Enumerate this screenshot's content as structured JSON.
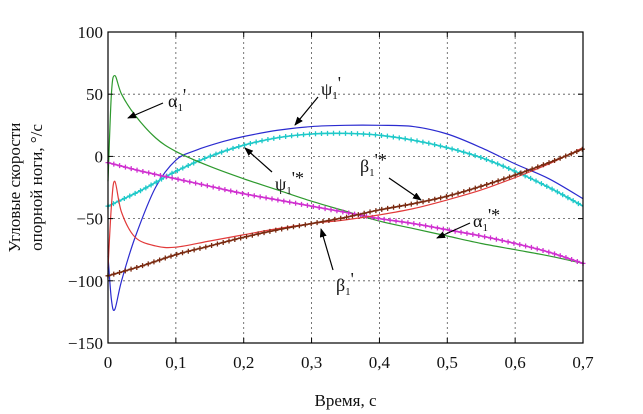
{
  "chart_data": {
    "type": "line",
    "xlabel": "Время, с",
    "ylabel": [
      "Угловые скорости",
      "опорной ноги, °/с"
    ],
    "xlim": [
      0,
      0.7
    ],
    "ylim": [
      -150,
      100
    ],
    "x_ticks": [
      "0",
      "0,1",
      "0,2",
      "0,3",
      "0,4",
      "0,5",
      "0,6",
      "0,7"
    ],
    "x_tick_values": [
      0,
      0.1,
      0.2,
      0.3,
      0.4,
      0.5,
      0.6,
      0.7
    ],
    "y_ticks": [
      "100",
      "50",
      "0",
      "−50",
      "−100",
      "−150"
    ],
    "y_tick_values": [
      100,
      50,
      0,
      -50,
      -100,
      -150
    ],
    "grid": true,
    "series": [
      {
        "name": "ψ1'",
        "color": "#2b2bd0",
        "marker": "none",
        "x": [
          0,
          0.005,
          0.01,
          0.02,
          0.04,
          0.07,
          0.1,
          0.13,
          0.17,
          0.2,
          0.25,
          0.3,
          0.35,
          0.4,
          0.45,
          0.5,
          0.55,
          0.6,
          0.65,
          0.7
        ],
        "y": [
          -80,
          -115,
          -123,
          -100,
          -65,
          -25,
          -3,
          5,
          12,
          16,
          21,
          24,
          25,
          25,
          24,
          18,
          7,
          -6,
          -18,
          -34
        ]
      },
      {
        "name": "ψ1'*",
        "color": "#1fc9c9",
        "marker": "plus",
        "x": [
          0,
          0.05,
          0.1,
          0.15,
          0.2,
          0.25,
          0.3,
          0.35,
          0.4,
          0.45,
          0.5,
          0.55,
          0.6,
          0.65,
          0.7
        ],
        "y": [
          -40,
          -27,
          -12,
          0,
          9,
          15,
          18,
          18.5,
          17,
          13,
          7,
          -1,
          -12,
          -25,
          -40
        ]
      },
      {
        "name": "α1'",
        "color": "#2e9a2e",
        "marker": "none",
        "x": [
          0,
          0.005,
          0.01,
          0.02,
          0.04,
          0.07,
          0.1,
          0.15,
          0.2,
          0.25,
          0.3,
          0.35,
          0.4,
          0.45,
          0.5,
          0.55,
          0.6,
          0.65,
          0.7
        ],
        "y": [
          -20,
          50,
          65,
          50,
          33,
          15,
          4,
          -8,
          -18,
          -27,
          -36,
          -44,
          -52,
          -58,
          -64,
          -70,
          -75,
          -80,
          -86
        ]
      },
      {
        "name": "α1'*",
        "color": "#d030d0",
        "marker": "plus",
        "x": [
          0,
          0.05,
          0.1,
          0.15,
          0.2,
          0.25,
          0.3,
          0.35,
          0.4,
          0.45,
          0.5,
          0.55,
          0.6,
          0.65,
          0.7
        ],
        "y": [
          -5,
          -12,
          -18,
          -24,
          -30,
          -35,
          -40,
          -45,
          -50,
          -54,
          -59,
          -64,
          -70,
          -77,
          -86
        ]
      },
      {
        "name": "β1'",
        "color": "#e23a3a",
        "marker": "none",
        "x": [
          0,
          0.005,
          0.01,
          0.02,
          0.04,
          0.07,
          0.1,
          0.15,
          0.2,
          0.25,
          0.3,
          0.35,
          0.4,
          0.45,
          0.5,
          0.55,
          0.6,
          0.65,
          0.7
        ],
        "y": [
          -90,
          -40,
          -20,
          -45,
          -65,
          -72,
          -73,
          -68,
          -63,
          -58,
          -54,
          -51,
          -47,
          -42,
          -35,
          -27,
          -17,
          -6,
          7
        ]
      },
      {
        "name": "β1'*",
        "color": "#7a2a10",
        "marker": "plus",
        "x": [
          0,
          0.05,
          0.1,
          0.15,
          0.2,
          0.25,
          0.3,
          0.35,
          0.4,
          0.45,
          0.5,
          0.55,
          0.6,
          0.65,
          0.7
        ],
        "y": [
          -96,
          -88,
          -79,
          -72,
          -65,
          -59,
          -54,
          -49,
          -43,
          -38,
          -32,
          -24,
          -15,
          -5,
          6
        ]
      }
    ],
    "annotations": [
      {
        "base": "α",
        "sub": "1",
        "sup": "'",
        "key": "a1"
      },
      {
        "base": "ψ",
        "sub": "1",
        "sup": "'",
        "key": "psi1"
      },
      {
        "base": "ψ",
        "sub": "1",
        "sup": "'*",
        "key": "psi1s"
      },
      {
        "base": "β",
        "sub": "1",
        "sup": "'*",
        "key": "b1s"
      },
      {
        "base": "α",
        "sub": "1",
        "sup": "'*",
        "key": "a1s"
      },
      {
        "base": "β",
        "sub": "1",
        "sup": "'",
        "key": "b1"
      }
    ]
  }
}
